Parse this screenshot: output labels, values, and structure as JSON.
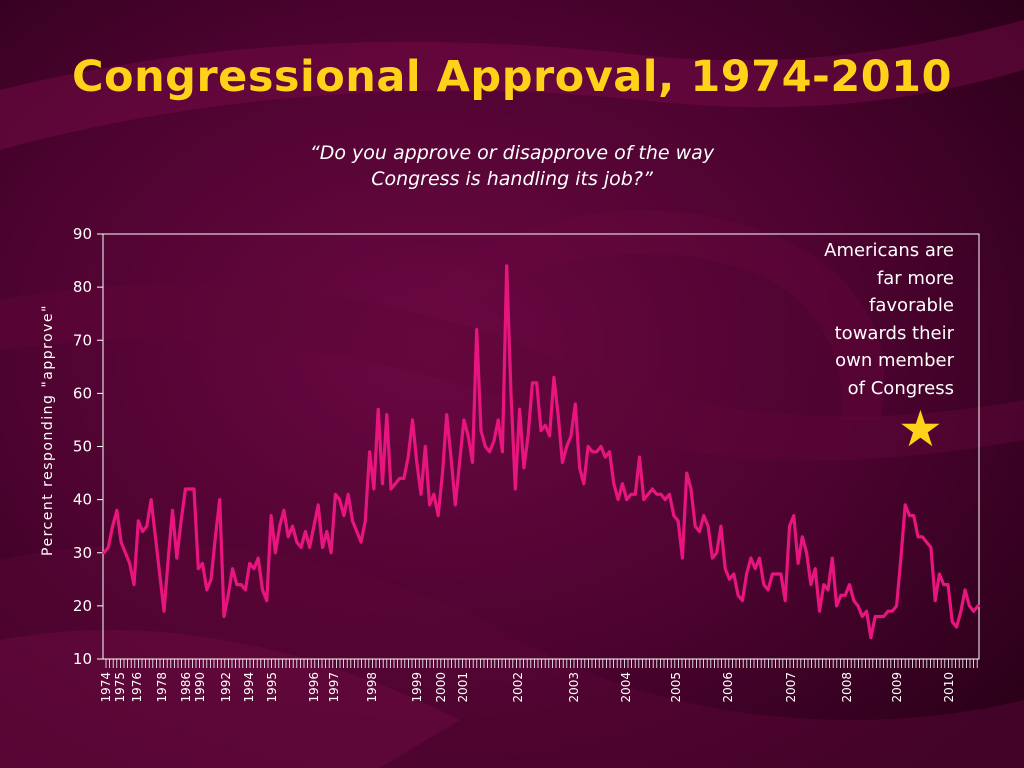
{
  "title": "Congressional Approval, 1974-2010",
  "subtitle_lines": [
    "“Do you approve or disapprove of the way",
    "Congress is handling its job?”"
  ],
  "annotation_lines": [
    "Americans are",
    "far more",
    "favorable",
    "towards their",
    "own member",
    "of Congress"
  ],
  "annotation_icon": "star-icon",
  "colors": {
    "background": "#3a0022",
    "title": "#ffd21a",
    "subtitle": "#ffffff",
    "line": "#e8157e",
    "text": "#ffffff",
    "axis": "#ffffff",
    "star": "#ffd21a"
  },
  "chart_data": {
    "type": "line",
    "title": "",
    "xlabel": "",
    "ylabel": "Percent responding \"approve\"",
    "ylim": [
      10,
      90
    ],
    "yticks": [
      10,
      20,
      30,
      40,
      50,
      60,
      70,
      80,
      90
    ],
    "grid": false,
    "xtick_labels": [
      "1974",
      "1975",
      "1976",
      "1978",
      "1986",
      "1990",
      "1992",
      "1994",
      "1995",
      "1996",
      "1997",
      "1998",
      "1999",
      "2000",
      "2001",
      "2002",
      "2003",
      "2004",
      "2005",
      "2006",
      "2007",
      "2008",
      "2009",
      "2010"
    ],
    "series": [
      {
        "values": [
          30,
          31,
          35,
          38,
          32,
          30,
          28,
          24,
          36,
          34,
          35,
          40,
          33,
          26,
          19,
          29,
          38,
          29,
          36,
          42,
          42,
          42,
          27,
          28,
          23,
          25,
          33,
          40,
          18,
          22,
          27,
          24,
          24,
          23,
          28,
          27,
          29,
          23,
          21,
          37,
          30,
          35,
          38,
          33,
          35,
          32,
          31,
          34,
          31,
          35,
          39,
          31,
          34,
          30,
          41,
          40,
          37,
          41,
          36,
          34,
          32,
          36,
          49,
          42,
          57,
          43,
          56,
          42,
          43,
          44,
          44,
          48,
          55,
          47,
          41,
          50,
          39,
          41,
          37,
          45,
          56,
          48,
          39,
          47,
          55,
          52,
          47,
          72,
          53,
          50,
          49,
          51,
          55,
          49,
          84,
          60,
          42,
          57,
          46,
          52,
          62,
          62,
          53,
          54,
          52,
          63,
          56,
          47,
          50,
          52,
          58,
          46,
          43,
          50,
          49,
          49,
          50,
          48,
          49,
          43,
          40,
          43,
          40,
          41,
          41,
          48,
          40,
          41,
          42,
          41,
          41,
          40,
          41,
          37,
          36,
          29,
          45,
          42,
          35,
          34,
          37,
          35,
          29,
          30,
          35,
          27,
          25,
          26,
          22,
          21,
          26,
          29,
          27,
          29,
          24,
          23,
          26,
          26,
          26,
          21,
          35,
          37,
          28,
          33,
          30,
          24,
          27,
          19,
          24,
          23,
          29,
          20,
          22,
          22,
          24,
          21,
          20,
          18,
          19,
          14,
          18,
          18,
          18,
          19,
          19,
          20,
          29,
          39,
          37,
          37,
          33,
          33,
          32,
          31,
          21,
          26,
          24,
          24,
          17,
          16,
          19,
          23,
          20,
          19,
          20
        ]
      }
    ]
  }
}
